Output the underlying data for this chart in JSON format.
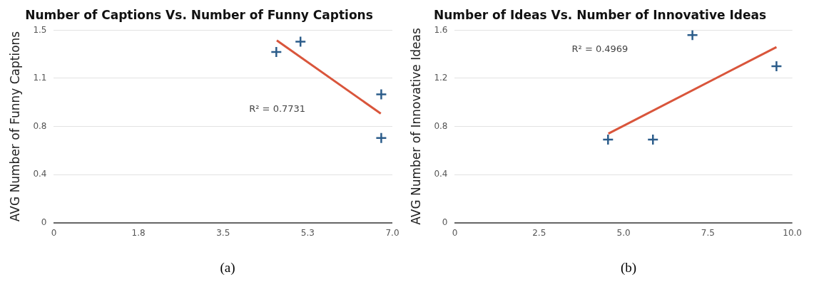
{
  "chart_data": [
    {
      "type": "scatter",
      "title": "Number of Captions Vs. Number of Funny Captions",
      "ylabel": "AVG Number of Funny Captions",
      "series": [
        {
          "type": "scatter",
          "color": "#2b5c8a",
          "x": [
            4.6,
            5.1,
            6.77,
            6.77
          ],
          "values": [
            1.33,
            1.41,
            1.0,
            0.66
          ]
        },
        {
          "type": "line",
          "color": "#d9553b",
          "x": [
            4.61,
            6.76
          ],
          "values": [
            1.42,
            0.85
          ],
          "marker": "none"
        }
      ],
      "annotations": [
        "R² = 0.7731",
        "(a)"
      ],
      "xlim": [
        0,
        7
      ],
      "xticks": [
        0,
        {
          "value": 1.75,
          "label": "1.8"
        },
        3.5,
        {
          "value": 5.25,
          "label": "5.3"
        },
        {
          "value": 7,
          "label": "7.0"
        }
      ],
      "ylim": [
        0,
        1.5
      ],
      "yticks": [
        0,
        {
          "value": 0.375,
          "label": "0.4"
        },
        {
          "value": 0.75,
          "label": "0.8"
        },
        {
          "value": 1.125,
          "label": "1.1"
        },
        1.5
      ],
      "grid": "y",
      "legend": false,
      "marker": "cross"
    },
    {
      "type": "scatter",
      "title": "Number of Ideas Vs. Number of Innovative Ideas",
      "ylabel": "AVG Number of Innovative Ideas",
      "series": [
        {
          "type": "scatter",
          "color": "#2b5c8a",
          "x": [
            4.54,
            5.87,
            7.04,
            9.53
          ],
          "values": [
            0.69,
            0.69,
            1.56,
            1.3
          ]
        },
        {
          "type": "line",
          "color": "#d9553b",
          "x": [
            4.55,
            9.53
          ],
          "values": [
            0.74,
            1.46
          ],
          "marker": "none"
        }
      ],
      "annotations": [
        "R² = 0.4969",
        "(b)"
      ],
      "xlim": [
        0,
        10
      ],
      "xticks": [
        0,
        2.5,
        {
          "value": 5,
          "label": "5.0"
        },
        7.5,
        {
          "value": 10,
          "label": "10.0"
        }
      ],
      "ylim": [
        0,
        1.6
      ],
      "yticks": [
        0,
        0.4,
        0.8,
        1.2,
        1.6
      ],
      "grid": "y",
      "legend": false,
      "marker": "cross"
    }
  ]
}
